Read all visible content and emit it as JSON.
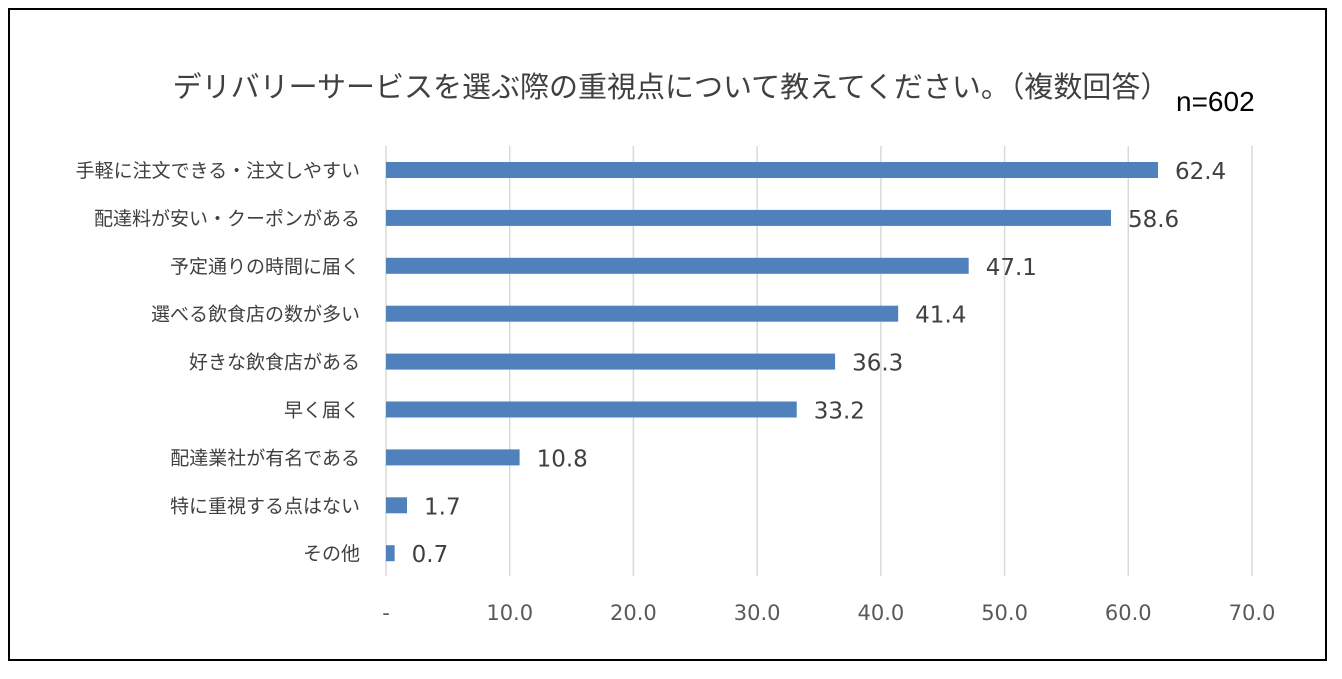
{
  "chart_data": {
    "type": "bar",
    "orientation": "horizontal",
    "title": "デリバリーサービスを選ぶ際の重視点について教えてください。（複数回答）",
    "note": "n=602",
    "categories": [
      "手軽に注文できる・注文しやすい",
      "配達料が安い・クーポンがある",
      "予定通りの時間に届く",
      "選べる飲食店の数が多い",
      "好きな飲食店がある",
      "早く届く",
      "配達業社が有名である",
      "特に重視する点はない",
      "その他"
    ],
    "values": [
      62.4,
      58.6,
      47.1,
      41.4,
      36.3,
      33.2,
      10.8,
      1.7,
      0.7
    ],
    "value_labels": [
      "62.4",
      "58.6",
      "47.1",
      "41.4",
      "36.3",
      "33.2",
      "10.8",
      "1.7",
      "0.7"
    ],
    "xlim": [
      0,
      70
    ],
    "x_ticks": [
      0,
      10,
      20,
      30,
      40,
      50,
      60,
      70
    ],
    "x_tick_labels": [
      "-",
      "10.0",
      "20.0",
      "30.0",
      "40.0",
      "50.0",
      "60.0",
      "70.0"
    ],
    "grid": "vertical",
    "bar_color": "#4f81bd"
  }
}
